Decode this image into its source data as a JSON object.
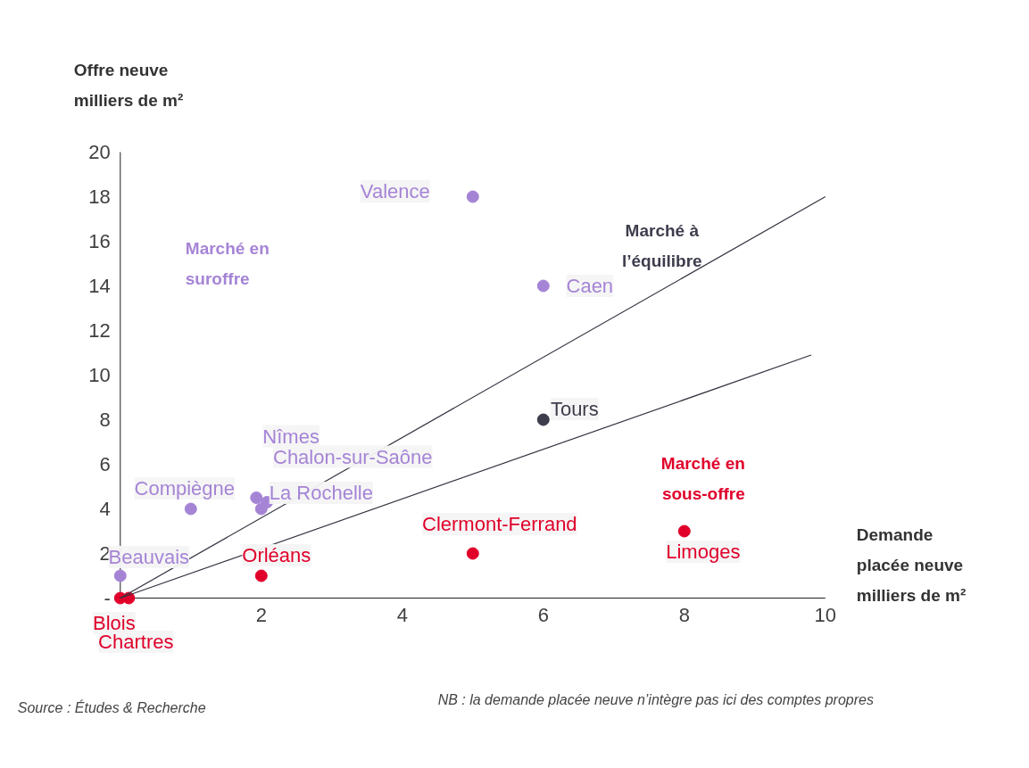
{
  "chart_data": {
    "type": "scatter",
    "xlabel": "Demande\nplacée neuve\nmilliers de m²",
    "ylabel": "Offre neuve\nmilliers de m²",
    "xlim": [
      0,
      10
    ],
    "ylim": [
      0,
      20
    ],
    "xticks": [
      2,
      4,
      6,
      8,
      10
    ],
    "yticks": [
      {
        "value": 0,
        "label": "-"
      },
      2,
      4,
      6,
      8,
      10,
      12,
      14,
      16,
      18,
      20
    ],
    "grid": false,
    "marker": "circle",
    "series": [
      {
        "color": "#a584d6",
        "x": [
          5,
          6,
          2.08,
          1.93,
          2,
          1,
          0
        ],
        "values": [
          18,
          14,
          4.3,
          4.5,
          4,
          4,
          1
        ]
      },
      {
        "color": "#3d3d4d",
        "x": [
          6
        ],
        "values": [
          8
        ]
      },
      {
        "color": "#e0002a",
        "x": [
          2,
          5,
          8,
          0,
          0.12
        ],
        "values": [
          1,
          2,
          3,
          0,
          0
        ]
      },
      {
        "type": "line",
        "color": "#333340",
        "line_style": "solid",
        "marker": "none",
        "x": [
          0,
          10
        ],
        "values": [
          0,
          18
        ]
      },
      {
        "type": "line",
        "color": "#333340",
        "line_style": "solid",
        "marker": "none",
        "x": [
          0,
          9.8
        ],
        "values": [
          0,
          10.9
        ]
      }
    ],
    "annotations": [
      {
        "text": "Valence",
        "x": 5,
        "y": 18
      },
      {
        "text": "Caen",
        "x": 6,
        "y": 14
      },
      {
        "text": "Tours",
        "x": 6,
        "y": 8
      },
      {
        "text": "Nîmes",
        "x": 2.08,
        "y": 4.3
      },
      {
        "text": "Chalon-sur-Saône",
        "x": 1.93,
        "y": 4.5
      },
      {
        "text": "La Rochelle",
        "x": 2,
        "y": 4
      },
      {
        "text": "Compiègne",
        "x": 1,
        "y": 4
      },
      {
        "text": "Beauvais",
        "x": 0,
        "y": 1
      },
      {
        "text": "Orléans",
        "x": 2,
        "y": 1
      },
      {
        "text": "Clermont-Ferrand",
        "x": 5,
        "y": 2
      },
      {
        "text": "Limoges",
        "x": 8,
        "y": 3
      },
      {
        "text": "Blois",
        "x": 0,
        "y": 0
      },
      {
        "text": "Chartres",
        "x": 0.12,
        "y": 0
      },
      "Marché en\nsuroffre",
      "Marché à\nl’équilibre",
      "Marché en\nsous-offre",
      "Source : Études & Recherche",
      "NB : la demande placée neuve n’intègre pas ici des comptes propres"
    ]
  }
}
